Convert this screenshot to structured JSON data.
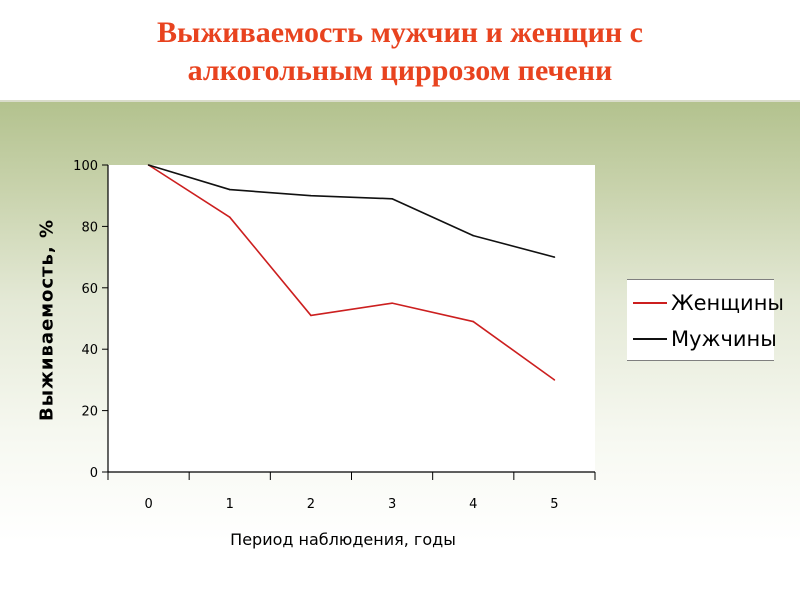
{
  "slide": {
    "title_line1": "Выживаемость мужчин и женщин с",
    "title_line2": "алкогольным циррозом печени"
  },
  "colors": {
    "title": "#e8431f",
    "women": "#cc1f1f",
    "men": "#111111"
  },
  "chart_data": {
    "type": "line",
    "x": [
      0,
      1,
      2,
      3,
      4,
      5
    ],
    "xlabel": "Период наблюдения, годы",
    "ylabel": "Выживаемость, %",
    "ylim": [
      0,
      100
    ],
    "yticks": [
      0,
      20,
      40,
      60,
      80,
      100
    ],
    "grid": false,
    "legend_position": "right",
    "series": [
      {
        "name": "Женщины",
        "color": "#cc1f1f",
        "values": [
          100,
          83,
          51,
          55,
          49,
          30
        ]
      },
      {
        "name": "Мужчины",
        "color": "#111111",
        "values": [
          100,
          92,
          90,
          89,
          77,
          70
        ]
      }
    ]
  }
}
